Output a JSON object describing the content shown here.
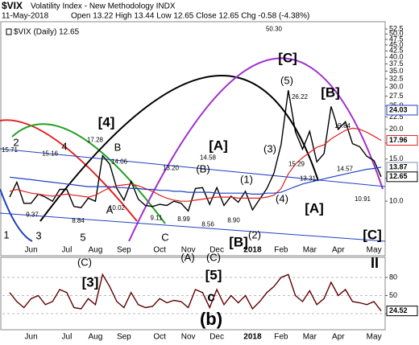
{
  "header": {
    "symbol": "$VIX",
    "name": "Volatility Index - New Methodology INDX",
    "date": "11-May-2018",
    "quote": "Open 13.22 High 13.44 Low 12.65 Close 12.65 Chg -0.58 (-4.38%)"
  },
  "chart_data": [
    {
      "type": "line",
      "log_scale": true,
      "grid": false,
      "ylim": [
        6.8,
        55
      ],
      "yticks": [
        {
          "value": 10,
          "label": "10.0"
        },
        {
          "value": 12.5,
          "label": "12.5"
        },
        {
          "value": 15,
          "label": "15.0"
        },
        {
          "value": 17.5,
          "label": "17.5"
        },
        {
          "value": 20,
          "label": "20.0"
        },
        {
          "value": 22.5,
          "label": "22.5"
        },
        {
          "value": 25,
          "label": "25.0"
        },
        {
          "value": 27.5,
          "label": "27.5"
        },
        {
          "value": 30,
          "label": "30.0"
        },
        {
          "value": 32.5,
          "label": "32.5"
        },
        {
          "value": 35,
          "label": "35.0"
        },
        {
          "value": 37.5,
          "label": "37.5"
        },
        {
          "value": 40,
          "label": "40.0"
        },
        {
          "value": 42.5,
          "label": "42.5"
        },
        {
          "value": 45,
          "label": "45.0"
        },
        {
          "value": 47.5,
          "label": "47.5"
        },
        {
          "value": 50,
          "label": "50.0"
        },
        {
          "value": 52.5,
          "label": "52.5"
        }
      ],
      "categories": [
        null,
        null,
        null,
        "Jun",
        null,
        null,
        null,
        null,
        "Jul",
        null,
        null,
        null,
        "Aug",
        null,
        null,
        null,
        "Sep",
        null,
        null,
        null,
        null,
        "Oct",
        null,
        null,
        null,
        "Nov",
        null,
        null,
        null,
        "Dec",
        null,
        null,
        null,
        null,
        "2018",
        null,
        null,
        null,
        "Feb",
        null,
        null,
        null,
        "Mar",
        null,
        null,
        null,
        "Apr",
        null,
        null,
        null,
        null,
        "May",
        null
      ],
      "legend": "$VIX (Daily) 12.65",
      "series": [
        {
          "color": "#000000",
          "values": [
            10.4,
            12.0,
            9.8,
            9.8,
            10.7,
            10.4,
            10.0,
            11.2,
            11.2,
            9.5,
            9.4,
            10.3,
            10.0,
            15.5,
            14.3,
            11.3,
            10.1,
            12.1,
            10.2,
            9.6,
            9.5,
            9.7,
            9.6,
            10.0,
            9.8,
            9.1,
            11.3,
            11.4,
            9.7,
            11.4,
            9.6,
            10.5,
            9.9,
            11.0,
            9.2,
            10.2,
            11.3,
            13.1,
            17.3,
            29.1,
            19.5,
            16.5,
            19.6,
            14.6,
            15.8,
            24.9,
            19.97,
            21.5,
            17.4,
            16.9,
            15.4,
            14.8,
            12.65
          ]
        },
        {
          "color": "#e02020",
          "values": [
            11.0,
            11.2,
            11.0,
            10.8,
            10.7,
            10.6,
            10.5,
            10.6,
            10.7,
            10.6,
            10.5,
            10.4,
            10.6,
            11.0,
            11.4,
            11.6,
            11.7,
            11.8,
            11.6,
            11.3,
            11.0,
            10.6,
            10.3,
            10.1,
            10.0,
            10.0,
            10.1,
            10.2,
            10.3,
            10.4,
            10.4,
            10.4,
            10.3,
            10.3,
            10.3,
            10.3,
            10.4,
            10.6,
            11.3,
            13.0,
            14.3,
            15.2,
            16.0,
            16.8,
            17.2,
            18.2,
            19.0,
            19.8,
            20.2,
            20.0,
            19.4,
            18.7,
            17.96
          ]
        },
        {
          "color": "#2040c0",
          "values": [
            12.6,
            12.5,
            12.4,
            12.3,
            12.2,
            12.1,
            12.0,
            11.9,
            11.8,
            11.7,
            11.6,
            11.5,
            11.5,
            11.5,
            11.5,
            11.4,
            11.4,
            11.3,
            11.3,
            11.2,
            11.2,
            11.1,
            11.1,
            11.0,
            11.0,
            10.9,
            10.9,
            10.9,
            10.9,
            10.8,
            10.8,
            10.8,
            10.8,
            10.8,
            10.7,
            10.7,
            10.8,
            10.8,
            10.9,
            11.2,
            11.5,
            11.8,
            12.0,
            12.2,
            12.4,
            12.6,
            12.8,
            13.0,
            13.2,
            13.4,
            13.6,
            13.7,
            13.87
          ]
        }
      ],
      "price_labels": {
        "values": [
          15.71,
          15.16,
          17.28,
          14.06,
          13.2,
          14.58,
          50.3,
          26.22,
          19.84,
          15.29,
          13.31,
          14.57,
          10.91,
          10.02,
          9.37,
          8.84,
          9.11,
          8.99,
          8.56,
          8.9
        ],
        "value_labels": [
          "15.71",
          "15.16",
          "17.28",
          "14.06",
          "13.20",
          "14.58",
          "50.30",
          "26.22",
          "19.84",
          "15.29",
          "13.31",
          "14.57",
          "10.91",
          "10.02",
          "9.37",
          "8.84",
          "9.11",
          "8.99",
          "8.56",
          "8.90"
        ]
      },
      "last_values": [
        {
          "value": 24.03,
          "color": "#2040c0"
        },
        {
          "value": 17.96,
          "color": "#e02020"
        },
        {
          "value": 13.87,
          "color": "#8090b0"
        },
        {
          "value": 12.65,
          "color": "#000000"
        }
      ],
      "annotations": [
        {
          "text": "1",
          "color": "#9020c0"
        },
        {
          "text": "2",
          "color": "#9020c0"
        },
        {
          "text": "3",
          "color": "#9020c0"
        },
        {
          "text": "4",
          "color": "#9020c0"
        },
        {
          "text": "5",
          "color": "#9020c0"
        },
        {
          "text": "[4]",
          "color": "#1a1aff"
        },
        {
          "text": "B",
          "color": "#b05080"
        },
        {
          "text": "A",
          "color": "#b05080"
        },
        {
          "text": "C",
          "color": "#b05080"
        },
        {
          "text": "(B)",
          "color": "#000000"
        },
        {
          "text": "[A]",
          "color": "#1a1aff"
        },
        {
          "text": "(1)",
          "color": "#000000"
        },
        {
          "text": "(2)",
          "color": "#000000"
        },
        {
          "text": "[B]",
          "color": "#1a1aff"
        },
        {
          "text": "(3)",
          "color": "#000000"
        },
        {
          "text": "(4)",
          "color": "#000000"
        },
        {
          "text": "[C]",
          "color": "#1a1aff"
        },
        {
          "text": "(5)",
          "color": "#000000"
        },
        {
          "text": "[B]",
          "color": "#1a1aff"
        },
        {
          "text": "[A]",
          "color": "#1a1aff"
        },
        {
          "text": "[C]",
          "color": "#1a1aff"
        }
      ]
    },
    {
      "type": "line",
      "log_scale": false,
      "grid": true,
      "ylim": [
        0,
        100
      ],
      "yticks": [
        20,
        50,
        80
      ],
      "categories": [
        null,
        null,
        null,
        "Jun",
        null,
        null,
        null,
        null,
        "Jul",
        null,
        null,
        null,
        "Aug",
        null,
        null,
        null,
        "Sep",
        null,
        null,
        null,
        null,
        "Oct",
        null,
        null,
        null,
        "Nov",
        null,
        null,
        null,
        "Dec",
        null,
        null,
        null,
        null,
        "2018",
        null,
        null,
        null,
        "Feb",
        null,
        null,
        null,
        "Mar",
        null,
        null,
        null,
        "Apr",
        null,
        null,
        null,
        null,
        "May",
        null
      ],
      "series": [
        {
          "color": "#600000",
          "values": [
            55,
            40,
            30,
            45,
            50,
            35,
            40,
            60,
            55,
            30,
            28,
            45,
            35,
            85,
            65,
            40,
            30,
            55,
            35,
            30,
            32,
            45,
            38,
            42,
            40,
            30,
            60,
            55,
            30,
            60,
            35,
            50,
            38,
            50,
            28,
            40,
            55,
            65,
            80,
            85,
            50,
            40,
            58,
            35,
            45,
            72,
            50,
            60,
            40,
            38,
            35,
            40,
            24.52
          ]
        }
      ],
      "last_values": [
        {
          "value": 24.52,
          "color": "#000000"
        }
      ],
      "annotations": [
        {
          "text": "(C)",
          "color": "#000000"
        },
        {
          "text": "[3]",
          "color": "#1a1aff"
        },
        {
          "text": "(A)",
          "color": "#000000"
        },
        {
          "text": "(C)",
          "color": "#000000"
        },
        {
          "text": "[5]",
          "color": "#1a1aff"
        },
        {
          "text": "c",
          "color": "#e01010"
        },
        {
          "text": "(b)",
          "color": "#1a9a1a"
        },
        {
          "text": "II",
          "color": "#e01010"
        }
      ]
    }
  ]
}
